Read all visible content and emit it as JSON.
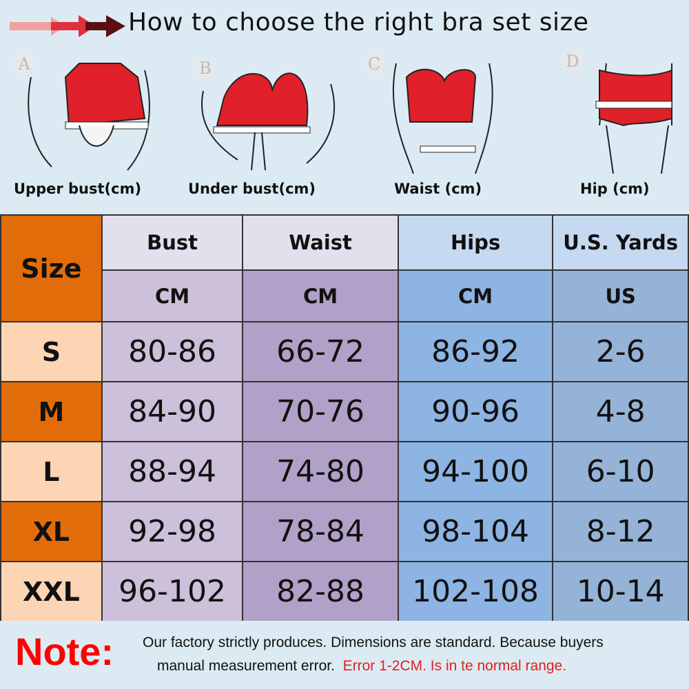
{
  "header": {
    "title": "How to choose the right bra set size"
  },
  "figures": [
    {
      "letter": "A",
      "label": "Upper bust(cm)"
    },
    {
      "letter": "B",
      "label": "Under bust(cm)"
    },
    {
      "letter": "C",
      "label": "Waist (cm)"
    },
    {
      "letter": "D",
      "label": "Hip (cm)"
    }
  ],
  "table": {
    "size_header": "Size",
    "columns": [
      {
        "name": "Bust",
        "unit": "CM"
      },
      {
        "name": "Waist",
        "unit": "CM"
      },
      {
        "name": "Hips",
        "unit": "CM"
      },
      {
        "name": "U.S. Yards",
        "unit": "US"
      }
    ],
    "rows": [
      {
        "size": "S",
        "values": [
          "80-86",
          "66-72",
          "86-92",
          "2-6"
        ]
      },
      {
        "size": "M",
        "values": [
          "84-90",
          "70-76",
          "90-96",
          "4-8"
        ]
      },
      {
        "size": "L",
        "values": [
          "88-94",
          "74-80",
          "94-100",
          "6-10"
        ]
      },
      {
        "size": "XL",
        "values": [
          "92-98",
          "78-84",
          "98-104",
          "8-12"
        ]
      },
      {
        "size": "XXL",
        "values": [
          "96-102",
          "82-88",
          "102-108",
          "10-14"
        ]
      }
    ]
  },
  "note": {
    "label": "Note:",
    "line1": "Our factory strictly produces.  Dimensions are standard.  Because buyers",
    "line2_black": "manual measurement error.",
    "line2_red": "Error 1-2CM.  Is in te normal range."
  },
  "colors": {
    "accent_orange": "#e36c0a",
    "peach": "#fcd5b4",
    "garment_red": "#e0202a",
    "note_red": "#ff0000"
  }
}
